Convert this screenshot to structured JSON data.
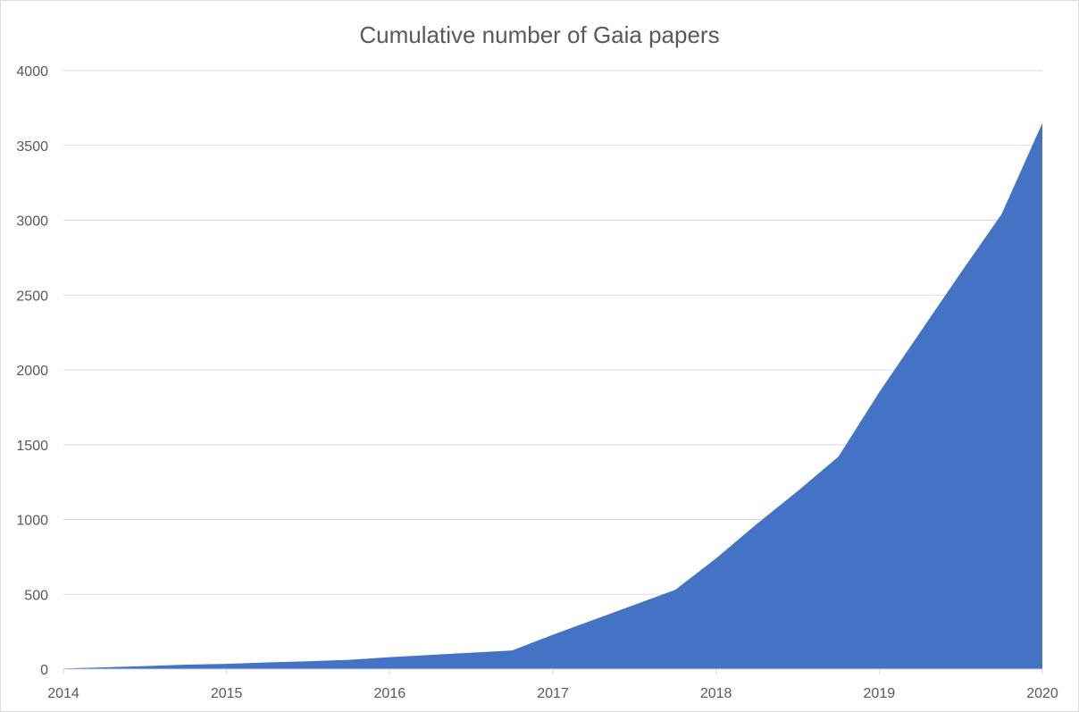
{
  "chart_data": {
    "type": "area",
    "title": "Cumulative number of Gaia papers",
    "xlabel": "",
    "ylabel": "",
    "ylim": [
      0,
      4000
    ],
    "xlim": [
      2014,
      2020
    ],
    "grid": true,
    "color": "#4472C4",
    "y_ticks": [
      "0",
      "500",
      "1000",
      "1500",
      "2000",
      "2500",
      "3000",
      "3500",
      "4000"
    ],
    "x_ticks": [
      "2014",
      "2015",
      "2016",
      "2017",
      "2018",
      "2019",
      "2020"
    ],
    "series": [
      {
        "x": [
          2014.0,
          2014.25,
          2014.5,
          2014.75,
          2015.0,
          2015.25,
          2015.5,
          2015.75,
          2016.0,
          2016.25,
          2016.5,
          2016.75,
          2017.0,
          2017.25,
          2017.5,
          2017.75,
          2018.0,
          2018.25,
          2018.5,
          2018.75,
          2019.0,
          2019.25,
          2019.5,
          2019.75,
          2020.0
        ],
        "values": [
          5,
          12,
          20,
          30,
          35,
          45,
          52,
          62,
          80,
          95,
          110,
          125,
          230,
          330,
          430,
          530,
          740,
          970,
          1190,
          1420,
          1850,
          2250,
          2650,
          3040,
          3650
        ]
      }
    ]
  }
}
